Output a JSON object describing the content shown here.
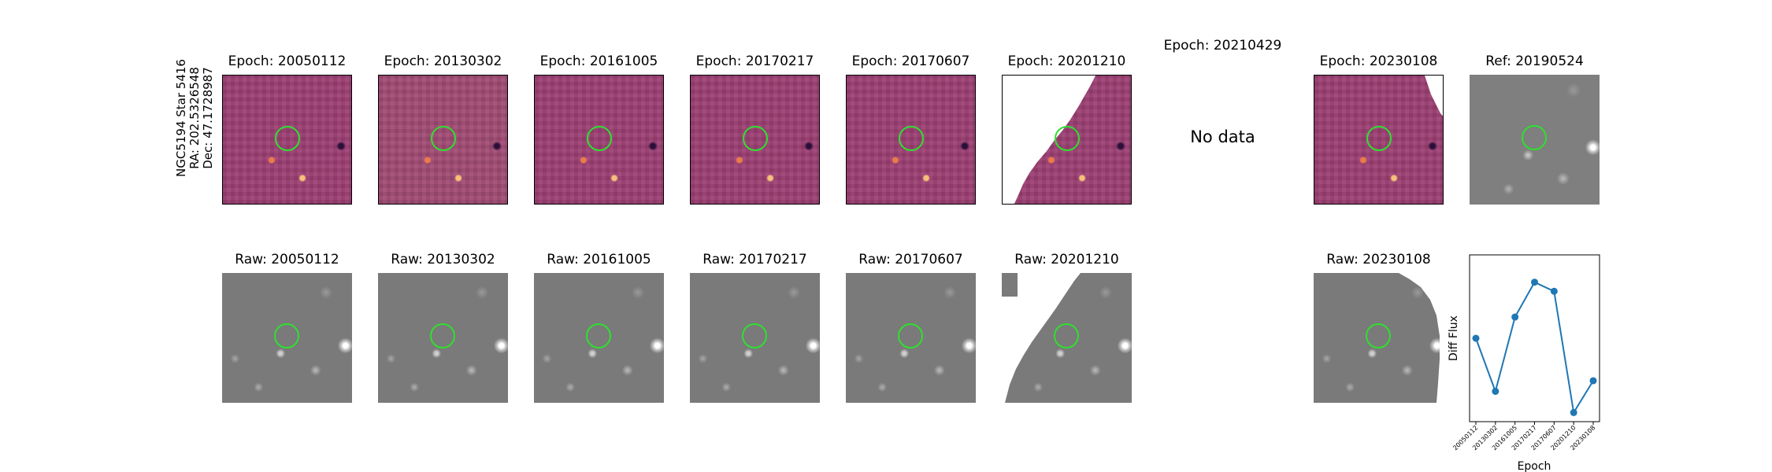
{
  "star_label": {
    "line1": "NGC5194 Star 5416",
    "line2": "RA: 202.5326548",
    "line3": "Dec: 47.1728987"
  },
  "diff_titles": [
    "Epoch: 20050112",
    "Epoch: 20130302",
    "Epoch: 20161005",
    "Epoch: 20170217",
    "Epoch: 20170607",
    "Epoch: 20201210",
    "Epoch: 20210429",
    "Epoch: 20230108"
  ],
  "ref_title": "Ref: 20190524",
  "no_data_text": "No data",
  "raw_titles": [
    "Raw: 20050112",
    "Raw: 20130302",
    "Raw: 20161005",
    "Raw: 20170217",
    "Raw: 20170607",
    "Raw: 20201210",
    "Raw: 20230108"
  ],
  "colors": {
    "circle": "#2ee02e",
    "line": "#1f77b4"
  },
  "chart_data": {
    "type": "line",
    "x": [
      "20050112",
      "20130302",
      "20161005",
      "20170217",
      "20170607",
      "20201210",
      "20230108"
    ],
    "values": [
      0.55,
      0.2,
      0.69,
      0.92,
      0.86,
      0.06,
      0.27
    ],
    "ylim": [
      0,
      1.1
    ],
    "xlabel": "Epoch",
    "ylabel": "Diff Flux"
  }
}
